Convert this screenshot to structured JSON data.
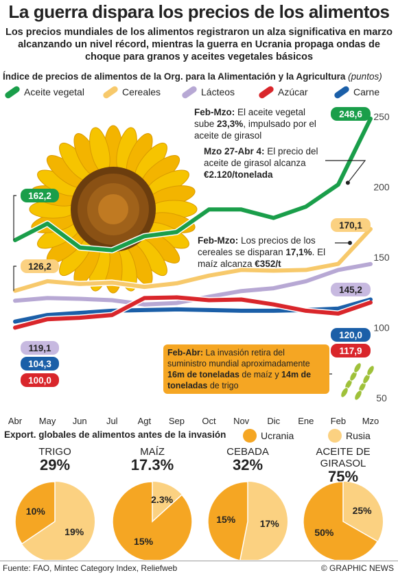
{
  "header": {
    "title": "La guerra dispara los precios de los alimentos",
    "subtitle": "Los precios mundiales de los alimentos registraron un alza significativa en marzo alcanzando un nivel récord, mientras la guerra en Ucrania propaga ondas de choque para granos y aceites vegetales básicos",
    "chart_title": "Índice de precios de alimentos de la Org. para la Alimentación y la Agricultura",
    "chart_unit": "(puntos)"
  },
  "legend": [
    {
      "name": "Aceite vegetal",
      "color": "#1a9e4a"
    },
    {
      "name": "Cereales",
      "color": "#f7c96b"
    },
    {
      "name": "Lácteos",
      "color": "#b7a8d4"
    },
    {
      "name": "Azúcar",
      "color": "#d9262b"
    },
    {
      "name": "Carne",
      "color": "#1b5fa8"
    }
  ],
  "notes": {
    "oil1_lead": "Feb-Mzo:",
    "oil1_a": " El aceite vegetal sube ",
    "oil1_pct": "23,3%",
    "oil1_b": ", impulsado por el aceite de girasol",
    "oil2_lead": "Mzo 27-Abr 4:",
    "oil2_a": " El precio del aceite de girasol alcanza ",
    "oil2_val": "€2.120/tonelada",
    "cer_lead": "Feb-Mzo:",
    "cer_a": " Los precios de los cereales se disparan ",
    "cer_pct": "17,1%",
    "cer_b": ". El maíz alcanza ",
    "cer_val": "€352/t",
    "inv_lead": "Feb-Abr:",
    "inv_a": " La invasión retira del suministro mundial aproximadamente ",
    "inv_b": "16m de toneladas",
    "inv_c": " de maíz y ",
    "inv_d": "14m de toneladas",
    "inv_e": " de trigo"
  },
  "chart_data": {
    "type": "line",
    "categories": [
      "Abr",
      "May",
      "Jun",
      "Jul",
      "Agt",
      "Sep",
      "Oct",
      "Nov",
      "Dic",
      "Ene",
      "Feb",
      "Mzo"
    ],
    "ylim": [
      50,
      260
    ],
    "yticks": [
      50,
      100,
      150,
      200,
      250
    ],
    "series": [
      {
        "name": "Aceite vegetal",
        "color": "#1a9e4a",
        "values": [
          162.2,
          174.0,
          157.0,
          155.0,
          165.0,
          168.0,
          184.0,
          184.0,
          178.0,
          186.0,
          201.7,
          248.6
        ],
        "start_label": "162,2",
        "end_label": "248,6"
      },
      {
        "name": "Cereales",
        "color": "#f7c96b",
        "values": [
          126.2,
          133.0,
          131.0,
          132.0,
          129.0,
          131.5,
          137.0,
          141.0,
          140.5,
          141.0,
          145.3,
          170.1
        ],
        "start_label": "126,2",
        "end_label": "170,1"
      },
      {
        "name": "Lácteos",
        "color": "#b7a8d4",
        "values": [
          119.1,
          121.0,
          120.5,
          119.5,
          116.5,
          117.5,
          122.0,
          126.0,
          128.0,
          133.0,
          141.0,
          145.2
        ],
        "start_label": "119,1",
        "end_label": "145,2"
      },
      {
        "name": "Azúcar",
        "color": "#d9262b",
        "values": [
          100.0,
          106.0,
          107.0,
          109.0,
          121.0,
          121.5,
          119.5,
          120.0,
          116.5,
          112.0,
          110.0,
          117.9
        ],
        "start_label": "100,0",
        "end_label": "117,9"
      },
      {
        "name": "Carne",
        "color": "#1b5fa8",
        "values": [
          104.3,
          109.0,
          110.5,
          112.0,
          112.5,
          113.0,
          112.5,
          112.0,
          112.0,
          112.5,
          113.5,
          120.0
        ],
        "start_label": "104,3",
        "end_label": "120,0"
      }
    ]
  },
  "exports": {
    "heading": "Export. globales de alimentos antes de la invasión",
    "legend": [
      {
        "name": "Ucrania",
        "color": "#f5a623"
      },
      {
        "name": "Rusia",
        "color": "#fbd181"
      }
    ],
    "pies": [
      {
        "name": "TRIGO",
        "total": "29%",
        "ukraine": 10,
        "russia": 19,
        "ukraine_label": "10%",
        "russia_label": "19%"
      },
      {
        "name": "MAÍZ",
        "total": "17.3%",
        "ukraine": 15,
        "russia": 2.3,
        "ukraine_label": "15%",
        "russia_label": "2.3%"
      },
      {
        "name": "CEBADA",
        "total": "32%",
        "ukraine": 15,
        "russia": 17,
        "ukraine_label": "15%",
        "russia_label": "17%"
      },
      {
        "name": "ACEITE DE GIRASOL",
        "total": "75%",
        "ukraine": 50,
        "russia": 25,
        "ukraine_label": "50%",
        "russia_label": "25%"
      }
    ]
  },
  "footer": {
    "source": "Fuente: FAO, Mintec Category Index, Reliefweb",
    "brand": "© GRAPHIC NEWS"
  }
}
